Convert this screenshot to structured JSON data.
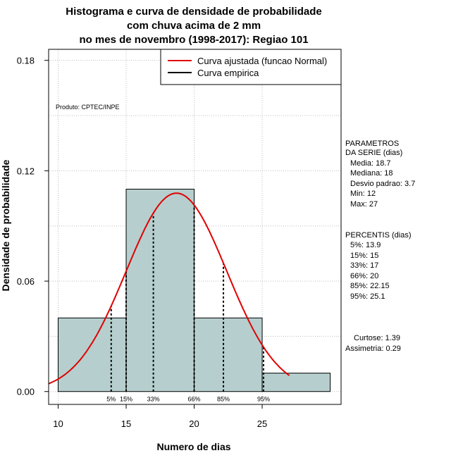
{
  "chart_data": {
    "type": "histogram",
    "title": [
      "Histograma e curva de densidade de probabilidade",
      "com chuva acima de 2 mm",
      "no mes de novembro (1998-2017): Regiao 101"
    ],
    "xlabel": "Numero de dias",
    "ylabel": "Densidade de probabilidade",
    "xlim": [
      9.3,
      30.8
    ],
    "ylim": [
      -0.007,
      0.186
    ],
    "x_ticks": [
      10,
      15,
      20,
      25
    ],
    "y_ticks": [
      0.0,
      0.06,
      0.12,
      0.18
    ],
    "y_tick_labels": [
      "0.00",
      "0.06",
      "0.12",
      "0.18"
    ],
    "grid": true,
    "bars": [
      {
        "x0": 10,
        "x1": 15,
        "density": 0.04
      },
      {
        "x0": 15,
        "x1": 20,
        "density": 0.11
      },
      {
        "x0": 20,
        "x1": 25,
        "density": 0.04
      },
      {
        "x0": 25,
        "x1": 30,
        "density": 0.01
      }
    ],
    "bar_color": "#b6cfce",
    "normal_fit": {
      "mean": 18.7,
      "sd": 3.7,
      "x_start": 9.3,
      "x_end": 27,
      "color": "#e00000"
    },
    "percentiles": [
      {
        "label": "5%",
        "x": 13.9
      },
      {
        "label": "15%",
        "x": 15
      },
      {
        "label": "33%",
        "x": 17
      },
      {
        "label": "66%",
        "x": 20
      },
      {
        "label": "85%",
        "x": 22.15
      },
      {
        "label": "95%",
        "x": 25.1
      }
    ],
    "legend": [
      {
        "label": "Curva ajustada (funcao Normal)",
        "color": "#e00000"
      },
      {
        "label": "Curva empirica",
        "color": "#000000"
      }
    ],
    "legend_position": "top-right",
    "annotations": {
      "product": "Produto: CPTEC/INPE",
      "params_header": [
        "PARAMETROS",
        "DA SERIE (dias)"
      ],
      "params": [
        "Media: 18.7",
        "Mediana: 18",
        "Desvio padrao: 3.7",
        "Min: 12",
        "Max: 27"
      ],
      "percentis_header": "PERCENTIS (dias)",
      "percentis": [
        "5%: 13.9",
        "15%: 15",
        "33%: 17",
        "66%: 20",
        "85%: 22.15",
        "95%: 25.1"
      ],
      "shape": [
        "Curtose: 1.39",
        "Assimetria: 0.29"
      ]
    }
  }
}
